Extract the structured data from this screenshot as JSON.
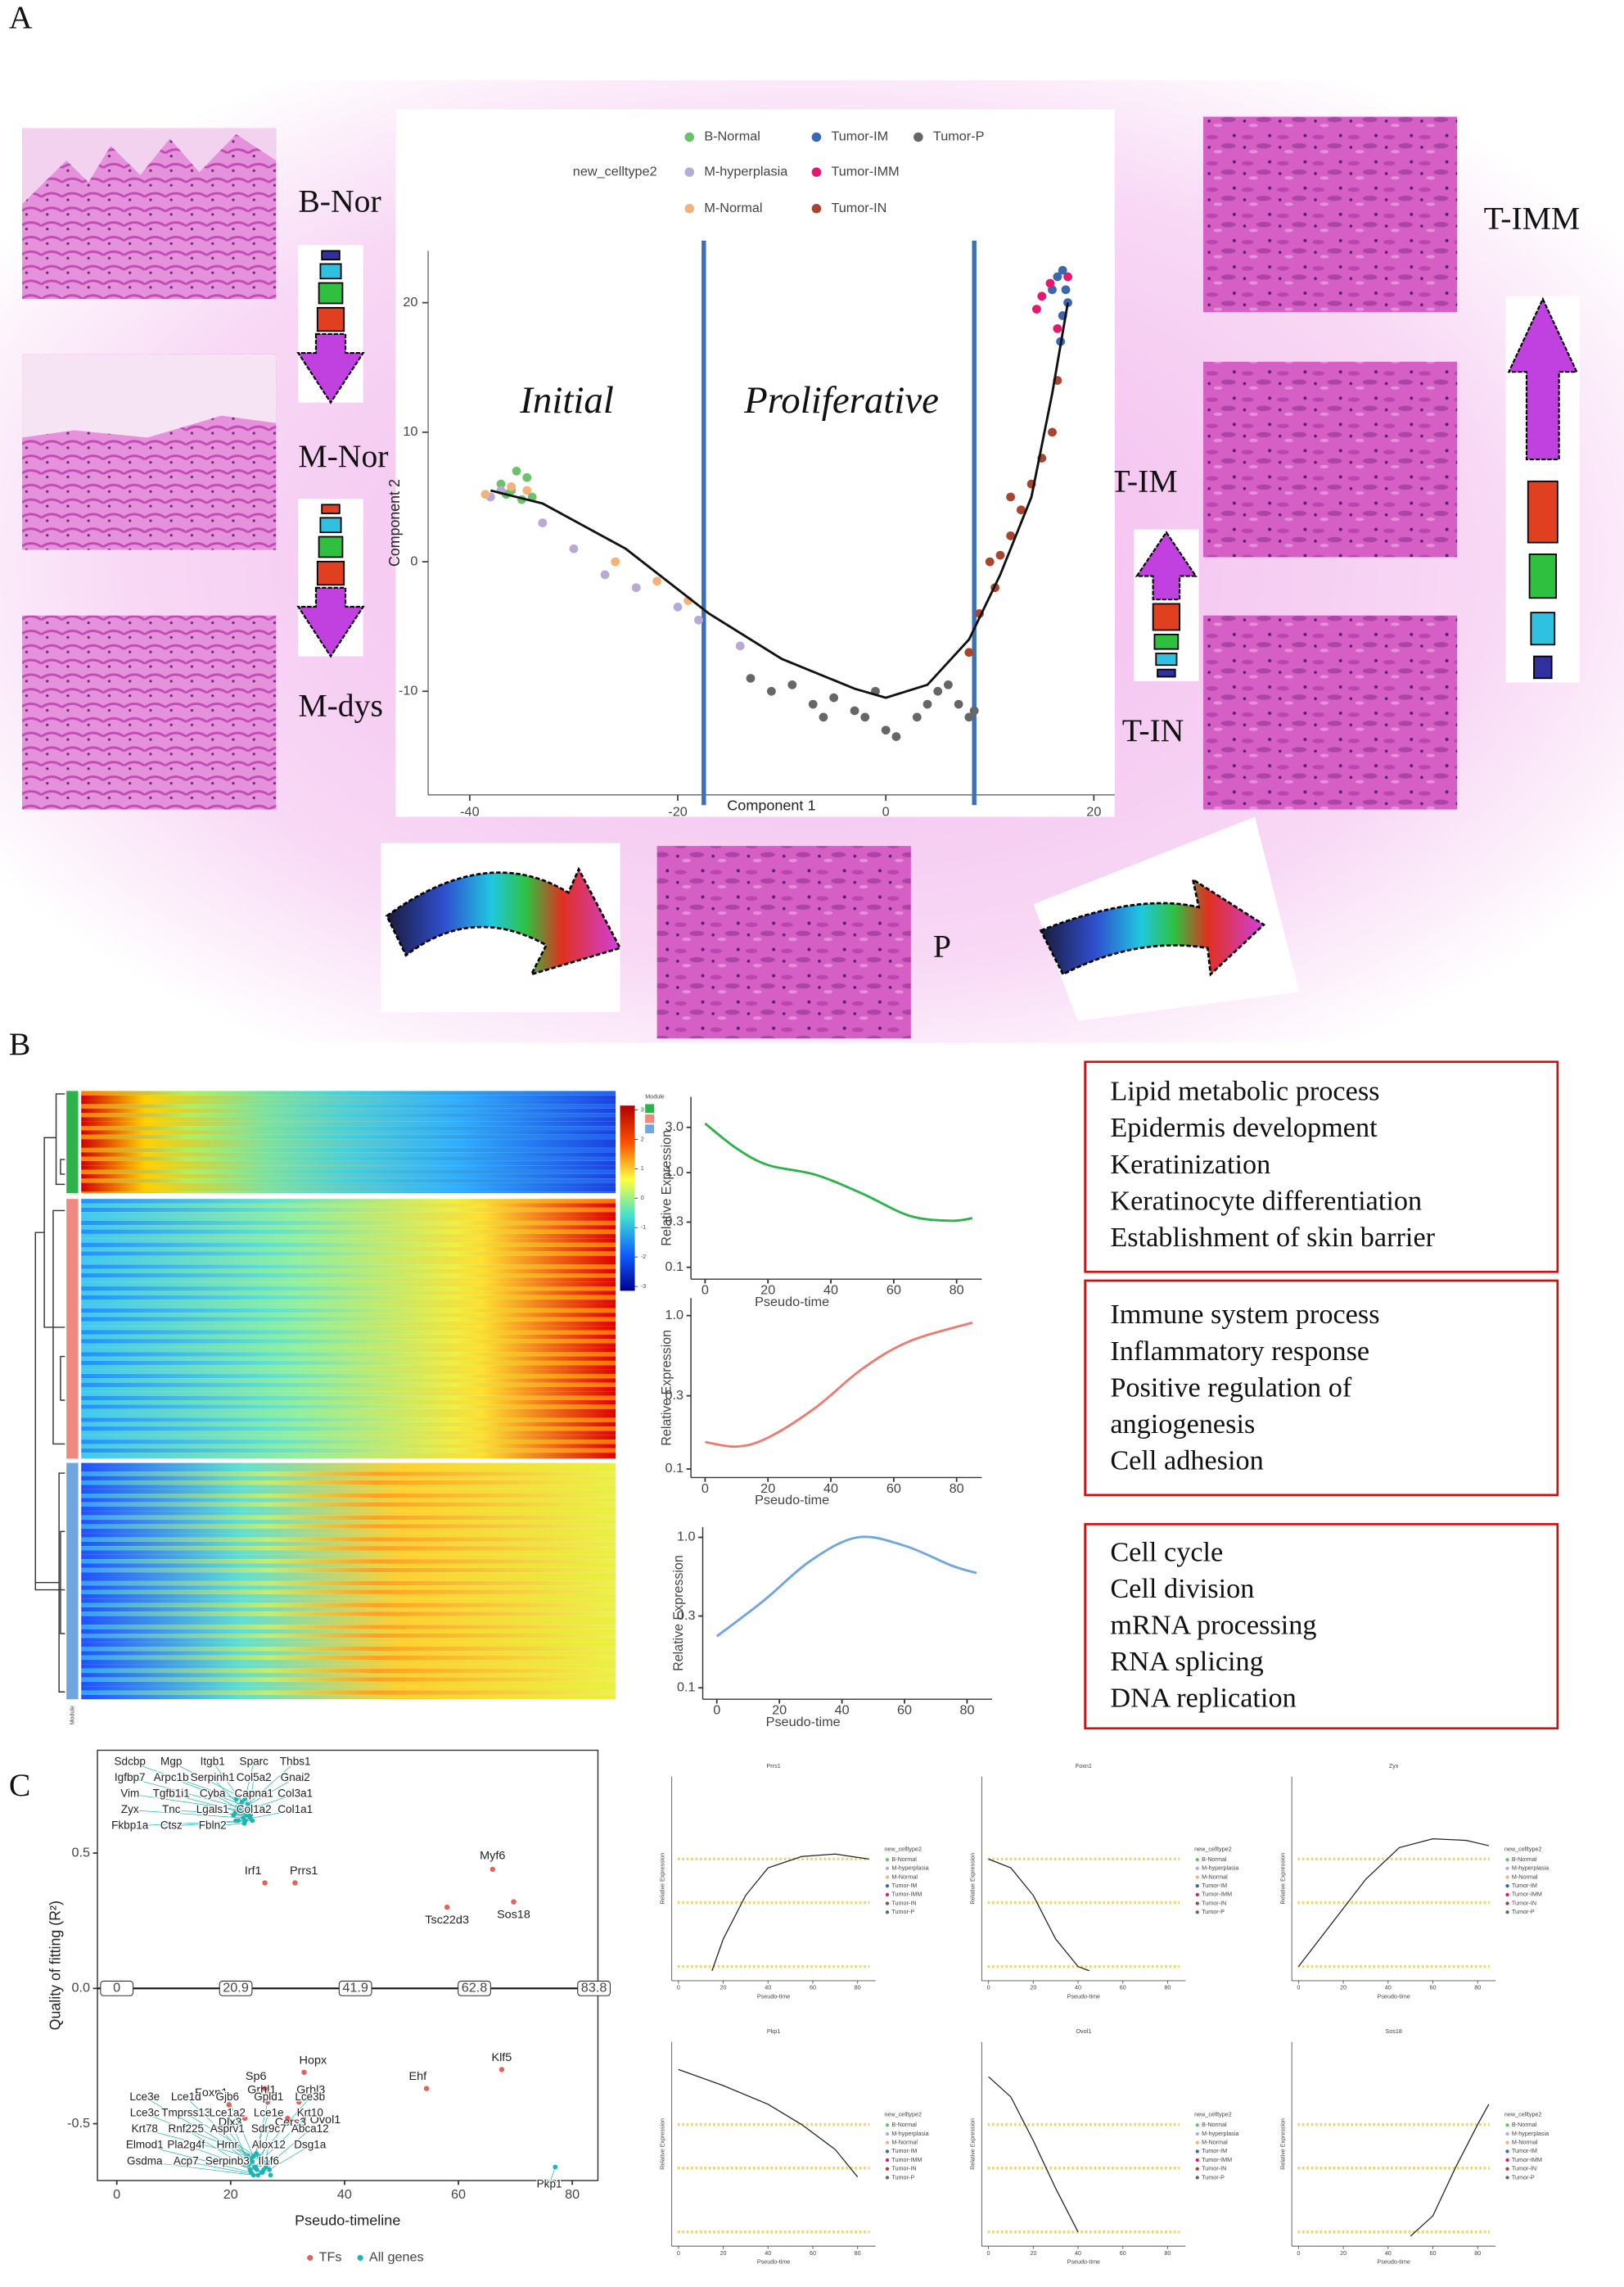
{
  "panel_labels": [
    "A",
    "B",
    "C"
  ],
  "stages": [
    "B-Nor",
    "M-Nor",
    "M-dys",
    "T-IMM",
    "T-IM",
    "T-IN",
    "P"
  ],
  "regions": [
    "Initial",
    "Proliferative"
  ],
  "heatmap": {
    "legend_title": "Module",
    "module_label": "Module",
    "module_colors": [
      "#2db34a",
      "#f08a80",
      "#6fa6e0"
    ],
    "colorbar_ticks": [
      3,
      2,
      1,
      0,
      -1,
      -2,
      -3
    ]
  },
  "go_terms": [
    [
      "Lipid metabolic process",
      "Epidermis development",
      "Keratinization",
      "Keratinocyte differentiation",
      "Establishment of skin barrier"
    ],
    [
      "Immune system process",
      "Inflammatory response",
      "Positive regulation of",
      "angiogenesis",
      "Cell adhesion"
    ],
    [
      "Cell cycle",
      "Cell division",
      "mRNA processing",
      "RNA splicing",
      "DNA replication"
    ]
  ],
  "chart_data": [
    {
      "type": "trajectory",
      "x_label": "Component 1",
      "y_label": "Component 2",
      "legend_title": "new_celltype2",
      "xlim": [
        -44,
        22
      ],
      "ylim": [
        -18,
        24
      ],
      "xticks": [
        -40,
        -20,
        0,
        20
      ],
      "yticks": [
        -10,
        0,
        10,
        20
      ],
      "boundaries": [
        -17.5,
        8.5
      ],
      "path": {
        "x": [
          -38,
          -33,
          -25,
          -17,
          -10,
          -3,
          0,
          4,
          8,
          11,
          14,
          16,
          17.5
        ],
        "y": [
          5.5,
          4.5,
          1,
          -4,
          -7.5,
          -9.8,
          -10.5,
          -9.5,
          -6,
          -1,
          5,
          13,
          20
        ]
      },
      "series": [
        {
          "name": "B-Normal",
          "color": "#6cc26c",
          "x": [
            -37,
            -36,
            -35.5,
            -34.5,
            -34,
            -35,
            -36.5
          ],
          "y": [
            6,
            5.5,
            7,
            6.5,
            5,
            4.8,
            5.2
          ]
        },
        {
          "name": "M-hyperplasia",
          "color": "#b9a9d6",
          "x": [
            -38,
            -37,
            -33,
            -30,
            -27,
            -24,
            -20,
            -18,
            -14
          ],
          "y": [
            5,
            5.5,
            3,
            1,
            -1,
            -2,
            -3.5,
            -4.5,
            -6.5
          ]
        },
        {
          "name": "M-Normal",
          "color": "#f3b27a",
          "x": [
            -38.5,
            -36,
            -34.5,
            -26,
            -22,
            -19
          ],
          "y": [
            5.2,
            5.8,
            5.5,
            0,
            -1.5,
            -3
          ]
        },
        {
          "name": "Tumor-IM",
          "color": "#3a67b0",
          "x": [
            16,
            16.5,
            17,
            17.3,
            17.5,
            17,
            16.8
          ],
          "y": [
            21,
            22,
            22.5,
            21,
            20,
            19,
            17
          ]
        },
        {
          "name": "Tumor-IMM",
          "color": "#e6176e",
          "x": [
            15,
            15.8,
            14.5,
            16.5,
            17.5
          ],
          "y": [
            20.5,
            21.5,
            19.5,
            18,
            22
          ]
        },
        {
          "name": "Tumor-IN",
          "color": "#a8452f",
          "x": [
            8,
            9,
            10,
            11,
            12,
            13,
            14,
            15,
            16,
            16.5,
            10.5,
            12
          ],
          "y": [
            -7,
            -4,
            0,
            0.5,
            2,
            4,
            6,
            8,
            10,
            14,
            -2,
            5
          ]
        },
        {
          "name": "Tumor-P",
          "color": "#666666",
          "x": [
            -13,
            -11,
            -9,
            -7,
            -5,
            -3,
            -1,
            0,
            1,
            3,
            4,
            5,
            6,
            7,
            8,
            8.5,
            -2,
            -6
          ],
          "y": [
            -9,
            -10,
            -9.5,
            -11,
            -10.5,
            -11.5,
            -10,
            -13,
            -13.5,
            -12,
            -11,
            -10,
            -9.5,
            -11,
            -12,
            -11.5,
            -12,
            -12
          ]
        }
      ]
    },
    {
      "type": "line",
      "log_scale": true,
      "x_label": "Pseudo-time",
      "y_label": "Relative Expression",
      "xlim": [
        -4.5,
        88
      ],
      "ylim": [
        0.075,
        6.3
      ],
      "xticks": [
        0,
        20,
        40,
        60,
        80
      ],
      "yticks": [
        0.1,
        0.3,
        {
          "value": 1,
          "label": "1.0"
        },
        {
          "value": 3,
          "label": "3.0"
        }
      ],
      "series": [
        {
          "color": "#2db34a",
          "x": [
            0,
            10,
            20,
            35,
            50,
            65,
            78,
            85
          ],
          "y": [
            3.3,
            1.8,
            1.2,
            0.95,
            0.6,
            0.35,
            0.31,
            0.33
          ]
        }
      ]
    },
    {
      "type": "line",
      "log_scale": true,
      "x_label": "Pseudo-time",
      "y_label": "Relative Expression",
      "xlim": [
        -4.5,
        88
      ],
      "ylim": [
        0.088,
        1.3
      ],
      "xticks": [
        0,
        20,
        40,
        60,
        80
      ],
      "yticks": [
        0.1,
        0.3,
        {
          "value": 1,
          "label": "1.0"
        }
      ],
      "series": [
        {
          "color": "#ee7b6f",
          "x": [
            0,
            10,
            20,
            35,
            50,
            65,
            85
          ],
          "y": [
            0.15,
            0.14,
            0.16,
            0.25,
            0.45,
            0.68,
            0.9
          ]
        }
      ]
    },
    {
      "type": "line",
      "log_scale": true,
      "x_label": "Pseudo-time",
      "y_label": "Relative Expression",
      "xlim": [
        -4.5,
        88
      ],
      "ylim": [
        0.084,
        1.17
      ],
      "xticks": [
        0,
        20,
        40,
        60,
        80
      ],
      "yticks": [
        0.1,
        0.3,
        {
          "value": 1,
          "label": "1.0"
        }
      ],
      "series": [
        {
          "color": "#6fa6e0",
          "x": [
            0,
            15,
            30,
            45,
            60,
            75,
            83
          ],
          "y": [
            0.22,
            0.38,
            0.7,
            1.0,
            0.88,
            0.65,
            0.58
          ]
        }
      ]
    },
    {
      "type": "fitting",
      "x_label": "Pseudo-timeline",
      "y_label": "Quality of fitting (R²)",
      "xlim": [
        -3.4,
        84.5
      ],
      "ylim": [
        -0.71,
        0.88
      ],
      "xticks": [
        0,
        20,
        40,
        60,
        80
      ],
      "yticks": [
        -0.5,
        {
          "value": 0,
          "label": "0.0"
        },
        0.5
      ],
      "timeline": [
        0,
        20.9,
        41.9,
        62.8,
        83.8
      ],
      "series": [
        {
          "name": "TFs",
          "color": "#e8605a",
          "labels": [
            "Irf1",
            "Prrs1",
            "Myf6",
            "Sos18",
            "Tsc22d3",
            "Hopx",
            "Sp6",
            "Grhl1",
            "Grhl3",
            "Foxn1",
            "Dlx3",
            "Cers3",
            "Ovol1",
            "Ehf",
            "Klf5"
          ],
          "x": [
            26,
            31.3,
            66,
            69.7,
            58,
            32.9,
            26,
            26.5,
            32,
            19.7,
            22.5,
            30,
            33,
            54.4,
            67.6
          ],
          "y": [
            0.39,
            0.39,
            0.44,
            0.32,
            0.3,
            -0.31,
            -0.37,
            -0.42,
            -0.42,
            -0.43,
            -0.48,
            -0.48,
            -0.47,
            -0.37,
            -0.3
          ]
        },
        {
          "name": "All genes",
          "color": "#1bb5b5",
          "labels": [
            "Sdcbp",
            "Mgp",
            "Itgb1",
            "Sparc",
            "Thbs1",
            "Igfbp7",
            "Arpc1b",
            "Serpinh1",
            "Col5a2",
            "Gnai2",
            "Vim",
            "Tgfb1i1",
            "Cyba",
            "Capna1",
            "Col3a1",
            "Zyx",
            "Tnc",
            "Lgals1",
            "Col1a2",
            "Col1a1",
            "Fkbp1a",
            "Ctsz",
            "Fbln2",
            "Lce3e",
            "Lce1d",
            "Gjb6",
            "Gpld1",
            "Lce3b",
            "Lce3c",
            "Tmprss13",
            "Lce1a2",
            "Lce1e",
            "Krt10",
            "Krt78",
            "Rnf225",
            "Asprv1",
            "Sdr9c7",
            "Abca12",
            "Elmod1",
            "Pla2g4f",
            "Hrnr",
            "Alox12",
            "Dsg1a",
            "Gsdma",
            "Acp7",
            "Serpinb3",
            "Il1f6",
            "Pkp1"
          ],
          "x": [
            21,
            21.5,
            22,
            22.5,
            23,
            21.2,
            21.8,
            22.3,
            23.2,
            20.8,
            21.4,
            22.1,
            23.5,
            20.5,
            21.6,
            22.2,
            22.8,
            23.4,
            20.9,
            21.3,
            22.6,
            23.8,
            22.4,
            23,
            23.5,
            24,
            24.5,
            25,
            25.5,
            26,
            23.2,
            23.8,
            24.2,
            26.5,
            23.4,
            24.4,
            25.2,
            26.2,
            23.6,
            24.6,
            25.4,
            25.8,
            26.8,
            24,
            24.8,
            25.6,
            27,
            77
          ],
          "y": [
            0.7,
            0.71,
            0.69,
            0.7,
            0.68,
            0.67,
            0.68,
            0.66,
            0.66,
            0.65,
            0.66,
            0.65,
            0.64,
            0.64,
            0.65,
            0.63,
            0.64,
            0.63,
            0.62,
            0.62,
            0.62,
            0.62,
            0.61,
            -0.62,
            -0.63,
            -0.62,
            -0.61,
            -0.62,
            -0.63,
            -0.64,
            -0.65,
            -0.64,
            -0.66,
            -0.64,
            -0.67,
            -0.66,
            -0.65,
            -0.66,
            -0.68,
            -0.67,
            -0.68,
            -0.67,
            -0.67,
            -0.69,
            -0.69,
            -0.68,
            -0.69,
            -0.66
          ]
        }
      ]
    },
    {
      "type": "curve",
      "title": "Prrs1",
      "xlim": [
        -3,
        88
      ],
      "ylim": [
        0.07,
        12
      ],
      "xticks": [
        0,
        20,
        40,
        60,
        80
      ],
      "band_color": "#d8b800",
      "x": [
        15,
        20,
        30,
        40,
        55,
        70,
        85
      ],
      "y": [
        0.09,
        0.2,
        0.6,
        1.2,
        1.6,
        1.7,
        1.5
      ]
    },
    {
      "type": "curve",
      "title": "Foxn1",
      "xlim": [
        -3,
        88
      ],
      "ylim": [
        0.07,
        12
      ],
      "xticks": [
        0,
        20,
        40,
        60,
        80
      ],
      "band_color": "#d8b800",
      "x": [
        0,
        10,
        20,
        30,
        40,
        45
      ],
      "y": [
        1.5,
        1.2,
        0.6,
        0.2,
        0.1,
        0.09
      ]
    },
    {
      "type": "curve",
      "title": "Zyx",
      "xlim": [
        -3,
        88
      ],
      "ylim": [
        0.07,
        12
      ],
      "xticks": [
        0,
        20,
        40,
        60,
        80
      ],
      "band_color": "#d8b800",
      "x": [
        0,
        15,
        30,
        45,
        60,
        75,
        85
      ],
      "y": [
        0.1,
        0.3,
        0.9,
        2.0,
        2.5,
        2.4,
        2.1
      ]
    },
    {
      "type": "curve",
      "title": "Pkp1",
      "xlim": [
        -3,
        88
      ],
      "ylim": [
        0.07,
        12
      ],
      "xticks": [
        0,
        20,
        40,
        60,
        80
      ],
      "band_color": "#d8b800",
      "x": [
        0,
        20,
        40,
        55,
        70,
        80
      ],
      "y": [
        6,
        4,
        2.5,
        1.5,
        0.8,
        0.4
      ]
    },
    {
      "type": "curve",
      "title": "Ovol1",
      "xlim": [
        -3,
        88
      ],
      "ylim": [
        0.07,
        12
      ],
      "xticks": [
        0,
        20,
        40,
        60,
        80
      ],
      "band_color": "#d8b800",
      "x": [
        0,
        10,
        20,
        30,
        40
      ],
      "y": [
        5,
        3,
        1,
        0.3,
        0.1
      ]
    },
    {
      "type": "curve",
      "title": "Sos18",
      "xlim": [
        -3,
        88
      ],
      "ylim": [
        0.07,
        12
      ],
      "xticks": [
        0,
        20,
        40,
        60,
        80
      ],
      "band_color": "#d8b800",
      "x": [
        50,
        60,
        70,
        80,
        85
      ],
      "y": [
        0.09,
        0.15,
        0.5,
        1.5,
        2.5
      ]
    }
  ]
}
